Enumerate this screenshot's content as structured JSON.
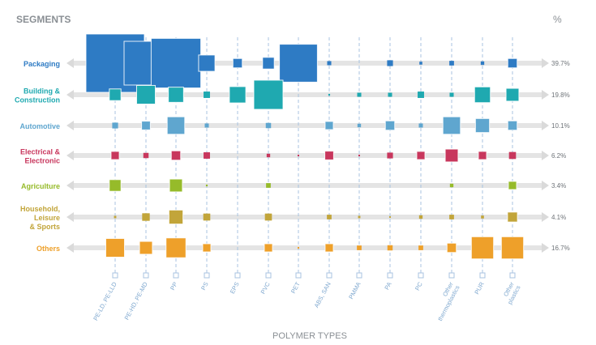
{
  "chart_data": {
    "type": "bubble-matrix",
    "title": "SEGMENTS",
    "percent_header": "%",
    "xlabel": "POLYMER TYPES",
    "segments": [
      {
        "lines": [
          "Packaging"
        ],
        "color": "#2e7bc4",
        "share": "39.7%"
      },
      {
        "lines": [
          "Building &",
          "Construction"
        ],
        "color": "#1fa9b0",
        "share": "19.8%"
      },
      {
        "lines": [
          "Automotive"
        ],
        "color": "#5fa6cf",
        "share": "10.1%"
      },
      {
        "lines": [
          "Electrical &",
          "Electronic"
        ],
        "color": "#c8375d",
        "share": "6.2%"
      },
      {
        "lines": [
          "Agriculture"
        ],
        "color": "#96bb2a",
        "share": "3.4%"
      },
      {
        "lines": [
          "Household,",
          "Leisure",
          "& Sports"
        ],
        "color": "#c2a53a",
        "share": "4.1%"
      },
      {
        "lines": [
          "Others"
        ],
        "color": "#eea02a",
        "share": "16.7%"
      }
    ],
    "polymers": [
      {
        "lines": [
          "PE-LD, PE-LLD"
        ]
      },
      {
        "lines": [
          "PE-HD, PE-MD"
        ]
      },
      {
        "lines": [
          "PP"
        ]
      },
      {
        "lines": [
          "PS"
        ]
      },
      {
        "lines": [
          "EPS"
        ]
      },
      {
        "lines": [
          "PVC"
        ]
      },
      {
        "lines": [
          "PET"
        ]
      },
      {
        "lines": [
          "ABS, SAN"
        ]
      },
      {
        "lines": [
          "PMMA"
        ]
      },
      {
        "lines": [
          "PA"
        ]
      },
      {
        "lines": [
          "PC"
        ]
      },
      {
        "lines": [
          "Other",
          "thermoplastics"
        ]
      },
      {
        "lines": [
          "PUR"
        ]
      },
      {
        "lines": [
          "Other",
          "plastics"
        ]
      }
    ],
    "matrix_relative_size": [
      [
        1.0,
        0.75,
        0.85,
        0.28,
        0.16,
        0.2,
        0.65,
        0.07,
        0.0,
        0.1,
        0.05,
        0.08,
        0.06,
        0.16
      ],
      [
        0.2,
        0.32,
        0.26,
        0.11,
        0.28,
        0.5,
        0.0,
        0.03,
        0.07,
        0.07,
        0.11,
        0.07,
        0.27,
        0.22
      ],
      [
        0.1,
        0.15,
        0.3,
        0.07,
        0.0,
        0.09,
        0.0,
        0.14,
        0.06,
        0.16,
        0.07,
        0.3,
        0.24,
        0.16
      ],
      [
        0.14,
        0.09,
        0.16,
        0.11,
        0.0,
        0.06,
        0.01,
        0.15,
        0.01,
        0.1,
        0.14,
        0.22,
        0.14,
        0.12
      ],
      [
        0.2,
        0.0,
        0.22,
        0.03,
        0.0,
        0.08,
        0.0,
        0.0,
        0.0,
        0.0,
        0.0,
        0.06,
        0.0,
        0.14
      ],
      [
        0.04,
        0.13,
        0.24,
        0.12,
        0.0,
        0.12,
        0.0,
        0.08,
        0.04,
        0.02,
        0.06,
        0.08,
        0.05,
        0.17
      ],
      [
        0.32,
        0.22,
        0.34,
        0.14,
        0.0,
        0.14,
        0.01,
        0.14,
        0.08,
        0.09,
        0.08,
        0.16,
        0.38,
        0.38
      ]
    ],
    "colors": {
      "text": "#8a8f94",
      "line": "#a8c3e0",
      "track": "#e4e4e4",
      "arrow": "#dadada"
    }
  }
}
